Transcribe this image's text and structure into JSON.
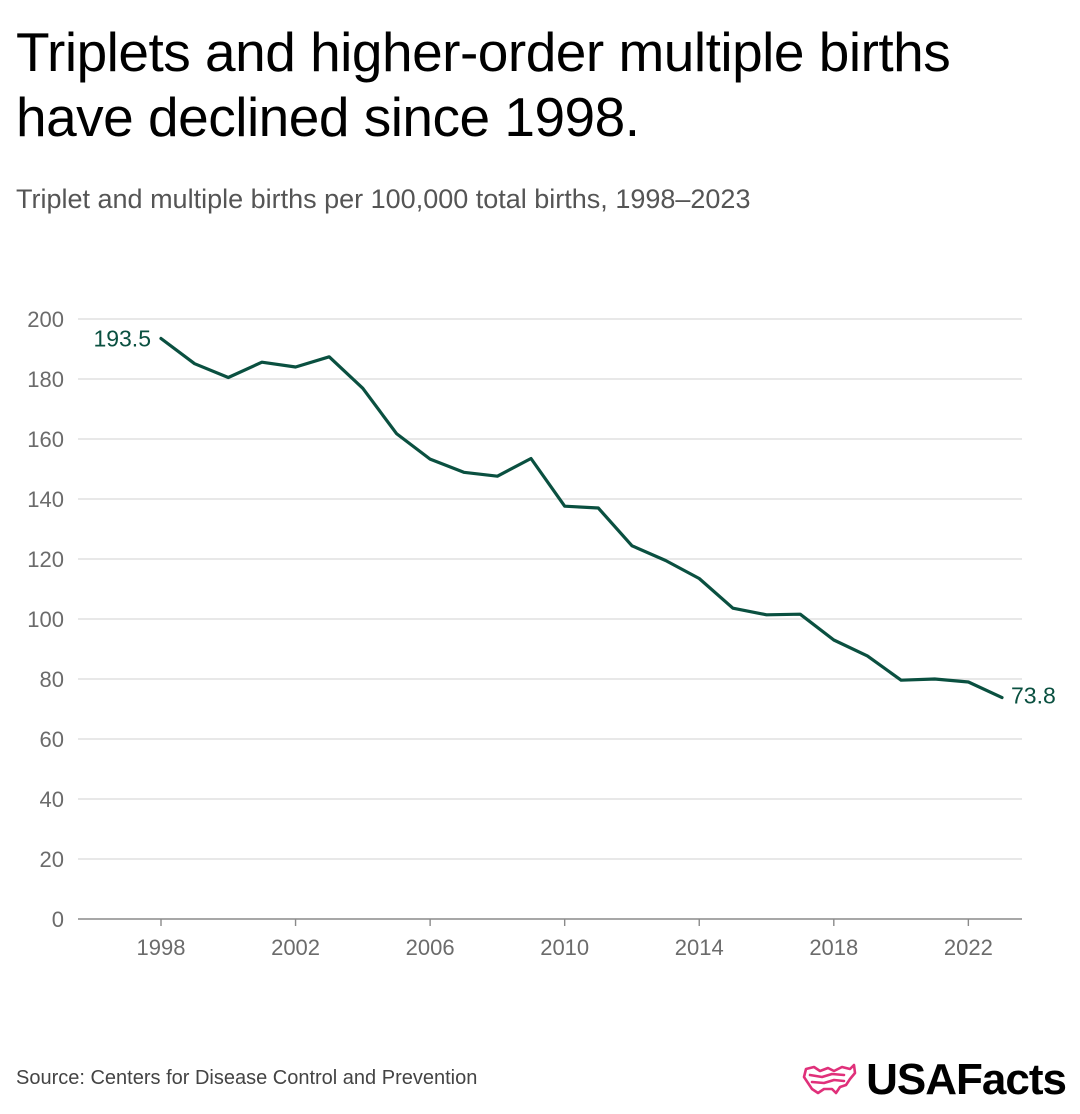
{
  "title": "Triplets and higher-order multiple births have declined since 1998.",
  "subtitle": "Triplet and multiple births per 100,000 total births, 1998–2023",
  "source": "Source: Centers for Disease Control and Prevention",
  "brand": {
    "name": "USAFacts",
    "logo_icon": "us-map-flag-icon",
    "logo_color": "#e0307a"
  },
  "colors": {
    "line": "#0a5040",
    "grid": "#d9d9d9",
    "axis": "#8a8a8a",
    "tick_text": "#6b6b6b"
  },
  "chart_data": {
    "type": "line",
    "title": "Triplets and higher-order multiple births have declined since 1998.",
    "subtitle": "Triplet and multiple births per 100,000 total births, 1998–2023",
    "xlabel": "",
    "ylabel": "",
    "x": [
      1998,
      1999,
      2000,
      2001,
      2002,
      2003,
      2004,
      2005,
      2006,
      2007,
      2008,
      2009,
      2010,
      2011,
      2012,
      2013,
      2014,
      2015,
      2016,
      2017,
      2018,
      2019,
      2020,
      2021,
      2022,
      2023
    ],
    "series": [
      {
        "values": [
          193.5,
          185.1,
          180.5,
          185.6,
          184.0,
          187.4,
          176.9,
          161.8,
          153.3,
          148.9,
          147.6,
          153.5,
          137.6,
          137.0,
          124.4,
          119.5,
          113.5,
          103.6,
          101.4,
          101.6,
          93.0,
          87.7,
          79.6,
          80.0,
          79.0,
          73.8
        ]
      }
    ],
    "ylim": [
      0,
      200
    ],
    "yticks": [
      0,
      20,
      40,
      60,
      80,
      100,
      120,
      140,
      160,
      180,
      200
    ],
    "xticks": [
      1998,
      2002,
      2006,
      2010,
      2014,
      2018,
      2022
    ],
    "xlim": [
      1998,
      2023
    ],
    "end_labels": {
      "first": "193.5",
      "last": "73.8"
    },
    "grid": true,
    "legend": "none"
  }
}
